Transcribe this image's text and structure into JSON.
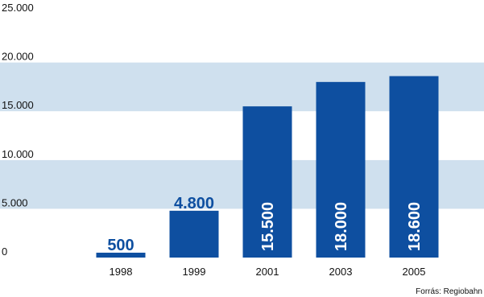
{
  "chart_data": {
    "type": "bar",
    "categories": [
      "1998",
      "1999",
      "2001",
      "2003",
      "2005"
    ],
    "values": [
      500,
      4800,
      15500,
      18000,
      18600
    ],
    "value_labels": [
      "500",
      "4.800",
      "15.500",
      "18.000",
      "18.600"
    ],
    "title": "",
    "xlabel": "",
    "ylabel": "",
    "ylim": [
      0,
      25000
    ],
    "yticks": [
      0,
      5000,
      10000,
      15000,
      20000,
      25000
    ],
    "ytick_labels": [
      "0",
      "5.000",
      "10.000",
      "15.000",
      "20.000",
      "25.000"
    ],
    "grid": "alternating horizontal bands",
    "legend": "none",
    "source": "Forrás: Regiobahn",
    "colors": {
      "bar": "#0e4fa0",
      "band": "#cfe0ee",
      "label_inside": "#ffffff",
      "label_above": "#0e4fa0"
    }
  }
}
